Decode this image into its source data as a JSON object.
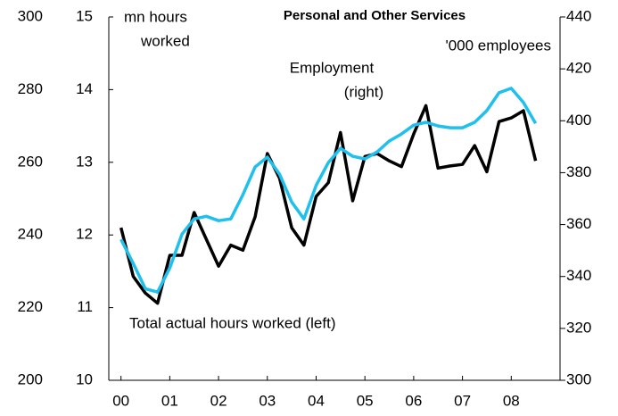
{
  "chart_data": {
    "type": "line",
    "title": "Personal and Other Services",
    "left_axis_label": [
      "mn hours",
      "worked"
    ],
    "right_axis_label": "'000 employees",
    "annotations": [
      {
        "text": [
          "Employment",
          "(right)"
        ],
        "series": 1
      },
      {
        "text": [
          "Total actual hours worked (left)"
        ],
        "series": 0
      }
    ],
    "xlim": [
      -0.25,
      9.0
    ],
    "xticks": [
      {
        "value": 0,
        "label": "00"
      },
      {
        "value": 1,
        "label": "01"
      },
      {
        "value": 2,
        "label": "02"
      },
      {
        "value": 3,
        "label": "03"
      },
      {
        "value": 4,
        "label": "04"
      },
      {
        "value": 5,
        "label": "05"
      },
      {
        "value": 6,
        "label": "06"
      },
      {
        "value": 7,
        "label": "07"
      },
      {
        "value": 8,
        "label": "08"
      }
    ],
    "ylim": [
      10,
      15
    ],
    "yticks": [
      10,
      11,
      12,
      13,
      14,
      15
    ],
    "y0lim": [
      200,
      300
    ],
    "y0ticks": [
      200,
      220,
      240,
      260,
      280,
      300
    ],
    "y2lim": [
      300,
      440
    ],
    "y2ticks": [
      300,
      320,
      340,
      360,
      380,
      400,
      420,
      440
    ],
    "x": [
      0,
      0.25,
      0.5,
      0.75,
      1,
      1.25,
      1.5,
      1.75,
      2,
      2.25,
      2.5,
      2.75,
      3,
      3.25,
      3.5,
      3.75,
      4,
      4.25,
      4.5,
      4.75,
      5,
      5.25,
      5.5,
      5.75,
      6,
      6.25,
      6.5,
      6.75,
      7,
      7.25,
      7.5,
      7.75,
      8,
      8.25,
      8.5
    ],
    "series": [
      {
        "name": "Total actual hours worked",
        "color": "#000000",
        "values": [
          12.1,
          11.43,
          11.2,
          11.06,
          11.72,
          11.72,
          12.31,
          11.94,
          11.57,
          11.86,
          11.79,
          12.25,
          13.12,
          12.78,
          12.1,
          11.86,
          12.53,
          12.72,
          13.41,
          12.47,
          13.08,
          13.12,
          13.02,
          12.94,
          13.39,
          13.78,
          12.92,
          12.95,
          12.97,
          13.23,
          12.87,
          13.56,
          13.61,
          13.71,
          13.02
        ]
      },
      {
        "name": "Employment",
        "color": "#1fc0ee",
        "axis": "y2",
        "values": [
          354.3,
          345.0,
          335.3,
          334.0,
          343.3,
          356.3,
          362.2,
          363.2,
          361.5,
          362.2,
          371.5,
          382.2,
          386.0,
          379.4,
          368.7,
          362.2,
          375.1,
          383.9,
          389.4,
          386.3,
          385.3,
          388.0,
          392.2,
          394.9,
          398.3,
          399.4,
          398.0,
          397.3,
          397.3,
          399.4,
          403.9,
          410.8,
          412.5,
          407.0,
          399.0
        ]
      }
    ]
  }
}
